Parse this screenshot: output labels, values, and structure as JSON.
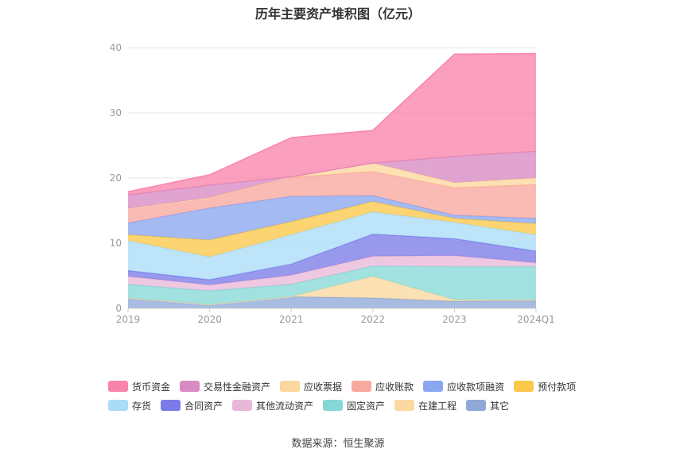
{
  "chart_data": {
    "type": "area",
    "stacked": true,
    "title": "历年主要资产堆积图（亿元）",
    "categories": [
      "2019",
      "2020",
      "2021",
      "2022",
      "2023",
      "2024Q1"
    ],
    "ylim": [
      0,
      40
    ],
    "yticks": [
      0,
      10,
      20,
      30,
      40
    ],
    "grid": true,
    "legend_position": "bottom",
    "series": [
      {
        "name": "其它",
        "color": "#8fa8d8",
        "values": [
          1.6,
          0.6,
          1.8,
          1.6,
          1.1,
          1.2
        ]
      },
      {
        "name": "在建工程",
        "color": "#fbd9a0",
        "values": [
          0.0,
          0.0,
          0.0,
          3.3,
          0.2,
          0.1
        ]
      },
      {
        "name": "固定资产",
        "color": "#86d8d6",
        "values": [
          2.1,
          2.1,
          1.9,
          1.6,
          5.1,
          5.1
        ]
      },
      {
        "name": "其他流动资产",
        "color": "#e9b8d8",
        "values": [
          1.2,
          0.9,
          1.4,
          1.5,
          1.7,
          0.6
        ]
      },
      {
        "name": "合同资产",
        "color": "#7b7be8",
        "values": [
          0.9,
          0.8,
          1.7,
          3.4,
          2.6,
          1.8
        ]
      },
      {
        "name": "存货",
        "color": "#aadcf7",
        "values": [
          4.6,
          3.5,
          4.5,
          3.4,
          2.5,
          2.5
        ]
      },
      {
        "name": "预付款项",
        "color": "#fbc84a",
        "values": [
          0.9,
          2.6,
          2.0,
          1.6,
          0.6,
          1.7
        ]
      },
      {
        "name": "应收款项融资",
        "color": "#8aa6f0",
        "values": [
          1.8,
          4.9,
          3.9,
          0.9,
          0.5,
          0.8
        ]
      },
      {
        "name": "应收账款",
        "color": "#f9a8a0",
        "values": [
          2.2,
          1.6,
          2.9,
          3.7,
          4.2,
          5.2
        ]
      },
      {
        "name": "应收票据",
        "color": "#fcd79e",
        "values": [
          0.0,
          0.0,
          0.1,
          1.3,
          0.8,
          1.0
        ]
      },
      {
        "name": "交易性金融资产",
        "color": "#d98ac4",
        "values": [
          2.1,
          1.9,
          0.0,
          0.0,
          4.0,
          4.1
        ]
      },
      {
        "name": "货币资金",
        "color": "#f984ab",
        "values": [
          0.5,
          1.6,
          6.0,
          5.0,
          15.7,
          15.0
        ]
      }
    ],
    "legend_order": [
      "货币资金",
      "交易性金融资产",
      "应收票据",
      "应收账款",
      "应收款项融资",
      "预付款项",
      "存货",
      "合同资产",
      "其他流动资产",
      "固定资产",
      "在建工程",
      "其它"
    ]
  },
  "source": "数据来源：恒生聚源"
}
